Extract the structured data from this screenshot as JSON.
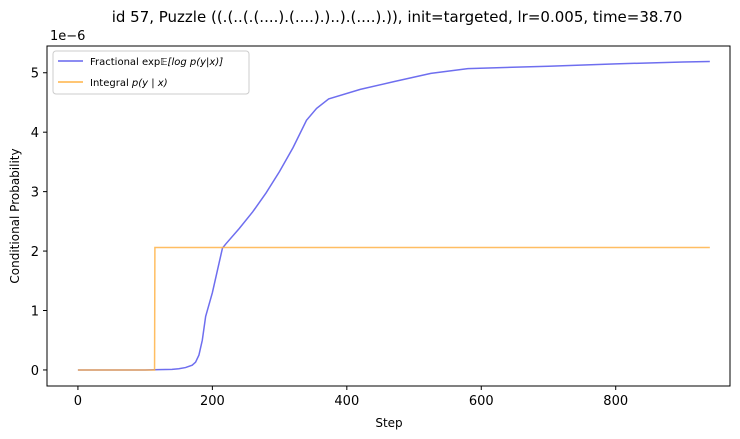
{
  "chart_data": {
    "type": "line",
    "title": "id 57, Puzzle ((.(..(.(....).(....).)..).(....).)), init=targeted, lr=0.005, time=38.70",
    "xlabel": "Step",
    "ylabel": "Conditional Probability",
    "y_offset_label": "1e−6",
    "xlim": [
      -46,
      970
    ],
    "ylim": [
      -0.27,
      5.45
    ],
    "xticks": [
      0,
      200,
      400,
      600,
      800
    ],
    "xtick_labels": [
      "0",
      "200",
      "400",
      "600",
      "800"
    ],
    "yticks": [
      0,
      1,
      2,
      3,
      4,
      5
    ],
    "ytick_labels": [
      "0",
      "1",
      "2",
      "3",
      "4",
      "5"
    ],
    "grid": false,
    "legend_position": "top-left",
    "series": [
      {
        "name": "Fractional exp𝔼[log p(y|x)]",
        "color": "#6666ee",
        "x": [
          0,
          100,
          120,
          140,
          150,
          160,
          170,
          175,
          180,
          185,
          190,
          195,
          200,
          205,
          210,
          215,
          220,
          240,
          260,
          280,
          300,
          320,
          340,
          355,
          373,
          420,
          470,
          525,
          580,
          700,
          800,
          900,
          940
        ],
        "y": [
          0,
          0,
          0.005,
          0.01,
          0.02,
          0.04,
          0.08,
          0.13,
          0.25,
          0.5,
          0.9,
          1.1,
          1.3,
          1.55,
          1.8,
          2.05,
          2.12,
          2.38,
          2.66,
          2.98,
          3.34,
          3.74,
          4.2,
          4.4,
          4.56,
          4.72,
          4.85,
          4.99,
          5.07,
          5.11,
          5.15,
          5.18,
          5.19
        ]
      },
      {
        "name": "Integral p(y | x)",
        "color": "#ffb347",
        "x": [
          0,
          114,
          114.5,
          940
        ],
        "y": [
          0,
          0,
          2.06,
          2.06
        ]
      }
    ]
  },
  "legend": {
    "entries": [
      {
        "prefix": "Fractional exp",
        "math": "𝔼[log p(y|x)]"
      },
      {
        "prefix": "Integral ",
        "math": "p(y | x)"
      }
    ]
  }
}
